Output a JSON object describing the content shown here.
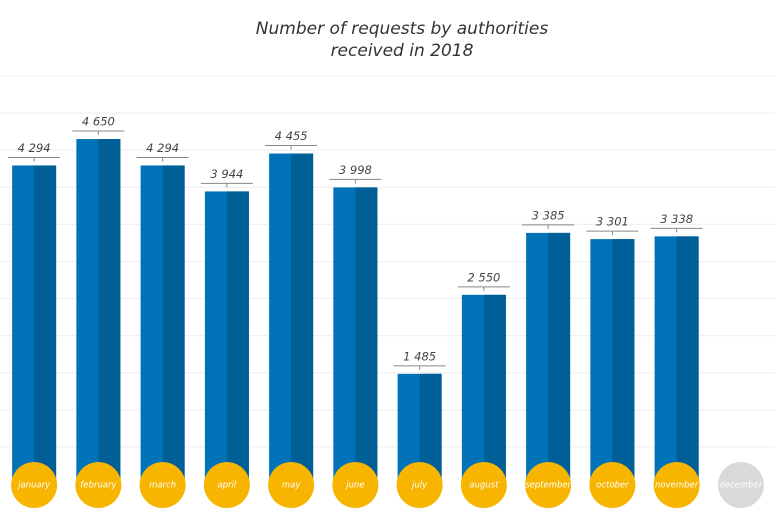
{
  "chart_data": {
    "type": "bar",
    "title": [
      "Number of requests by authorities",
      "received in 2018"
    ],
    "categories": [
      "january",
      "february",
      "march",
      "april",
      "may",
      "june",
      "july",
      "august",
      "september",
      "october",
      "november",
      "december"
    ],
    "values": [
      4294,
      4650,
      4294,
      3944,
      4455,
      3998,
      1485,
      2550,
      3385,
      3301,
      3338,
      null
    ],
    "value_labels": [
      "4 294",
      "4 650",
      "4 294",
      "3 944",
      "4 455",
      "3 998",
      "1 485",
      "2 550",
      "3 385",
      "3 301",
      "3 338",
      null
    ],
    "color": "#0072b8",
    "shade_color": "#005f96",
    "label_circle_color": "#f7b500",
    "empty_label_circle_color": "#d9d9d9",
    "ylim": [
      0,
      5500
    ],
    "yticks": [
      500,
      1000,
      1500,
      2000,
      2500,
      3000,
      3500,
      4000,
      4500,
      5000,
      5500
    ],
    "grid": true
  }
}
